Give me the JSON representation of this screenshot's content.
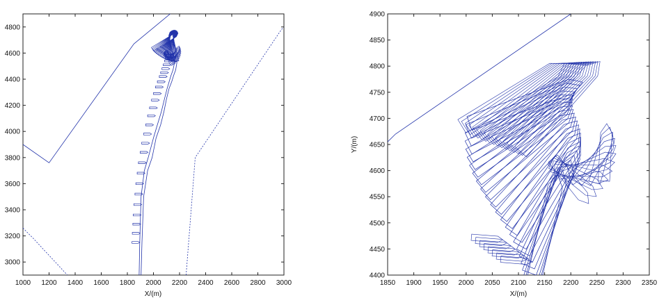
{
  "chart_data": [
    {
      "type": "line",
      "title": "",
      "xlabel": "X/(m)",
      "ylabel": "",
      "xlim": [
        1000,
        3000
      ],
      "ylim": [
        2900,
        4900
      ],
      "xticks": [
        "1000",
        "1200",
        "1400",
        "1600",
        "1800",
        "2000",
        "2200",
        "2400",
        "2600",
        "2800",
        "3000"
      ],
      "yticks": [
        "3000",
        "3200",
        "3400",
        "3600",
        "3800",
        "4000",
        "4200",
        "4400",
        "4600",
        "4800"
      ],
      "grid": false,
      "line_color": "#2233aa",
      "series": [
        {
          "style": "solid",
          "x": [
            1000,
            1200,
            1850,
            2370
          ],
          "y": [
            3900,
            3760,
            4670,
            5100
          ]
        },
        {
          "style": "dotted",
          "x": [
            2250,
            2320,
            2980,
            3000
          ],
          "y": [
            2900,
            3800,
            4780,
            4800
          ]
        },
        {
          "style": "dotted",
          "x": [
            1000,
            1080,
            1340
          ],
          "y": [
            3260,
            3180,
            2900
          ]
        },
        {
          "style": "solid",
          "x": [
            1890,
            1895,
            1905,
            1930,
            1960,
            2000,
            2030,
            2060,
            2085,
            2105,
            2120,
            2135,
            2150,
            2160,
            2170
          ],
          "y": [
            2900,
            3150,
            3500,
            3700,
            3800,
            3950,
            4050,
            4150,
            4250,
            4330,
            4380,
            4430,
            4470,
            4520,
            4580
          ]
        },
        {
          "style": "solid",
          "x": [
            1905,
            1912,
            1925,
            1955,
            1990,
            2020,
            2055,
            2080,
            2100,
            2120,
            2140,
            2155,
            2170,
            2180
          ],
          "y": [
            2900,
            3150,
            3500,
            3700,
            3800,
            3950,
            4050,
            4150,
            4250,
            4330,
            4380,
            4430,
            4470,
            4530
          ]
        }
      ],
      "ship_track": {
        "x": [
          1895,
          1898,
          1902,
          1905,
          1910,
          1918,
          1925,
          1935,
          1945,
          1958,
          1970,
          1985,
          2000,
          2015,
          2030,
          2045,
          2060,
          2075,
          2090,
          2105,
          2115,
          2125,
          2135,
          2145,
          2150,
          2155
        ],
        "y": [
          3150,
          3220,
          3290,
          3360,
          3440,
          3520,
          3600,
          3680,
          3760,
          3840,
          3910,
          3980,
          4050,
          4120,
          4180,
          4240,
          4290,
          4340,
          4380,
          4420,
          4450,
          4480,
          4510,
          4540,
          4560,
          4580
        ]
      },
      "berth_turn": {
        "center": [
          2030,
          4650
        ],
        "count": 22
      }
    },
    {
      "type": "line",
      "title": "",
      "xlabel": "X/(m)",
      "ylabel": "Y/(m)",
      "xlim": [
        1850,
        2350
      ],
      "ylim": [
        4400,
        4900
      ],
      "xticks": [
        "1850",
        "1900",
        "1950",
        "2000",
        "2050",
        "2100",
        "2150",
        "2200",
        "2250",
        "2300",
        "2350"
      ],
      "yticks": [
        "4400",
        "4450",
        "4500",
        "4550",
        "4600",
        "4650",
        "4700",
        "4750",
        "4800",
        "4850",
        "4900"
      ],
      "grid": false,
      "line_color": "#2233aa",
      "series": [
        {
          "style": "solid",
          "x": [
            1850,
            1865,
            2200
          ],
          "y": [
            4655,
            4670,
            4900
          ]
        }
      ],
      "ship_count": 24
    }
  ]
}
